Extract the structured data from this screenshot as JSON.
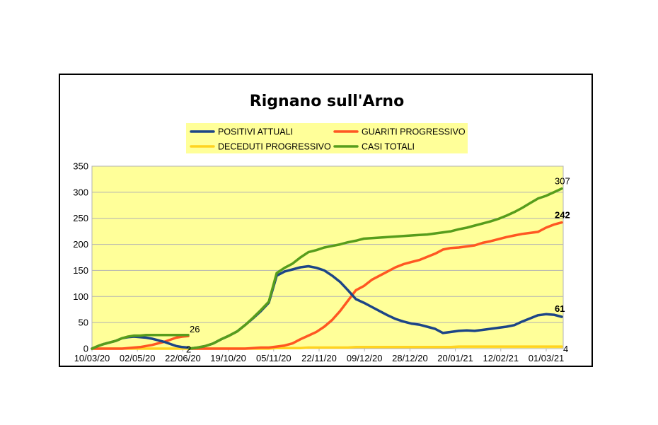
{
  "chart_data": {
    "type": "line",
    "title": "Rignano sull'Arno",
    "xlabel": "",
    "ylabel": "",
    "ylim": [
      0,
      350
    ],
    "yticks": [
      0,
      50,
      100,
      150,
      200,
      250,
      300,
      350
    ],
    "x_tick_labels": [
      "10/03/20",
      "02/05/20",
      "22/06/20",
      "19/10/20",
      "05/11/20",
      "22/11/20",
      "09/12/20",
      "28/12/20",
      "20/01/21",
      "12/02/21",
      "01/03/21"
    ],
    "grid": true,
    "legend_position": "top",
    "plot_background": "#ffff99",
    "segments": [
      {
        "segment": 1,
        "x": [
          "10/03/20",
          "17/03/20",
          "24/03/20",
          "31/03/20",
          "07/04/20",
          "14/04/20",
          "21/04/20",
          "28/04/20",
          "05/05/20",
          "12/05/20",
          "19/05/20",
          "26/05/20",
          "02/06/20",
          "09/06/20",
          "16/06/20",
          "23/06/20",
          "28/06/20"
        ],
        "series": [
          {
            "name": "POSITIVI ATTUALI",
            "color": "#1c4587",
            "values": [
              0,
              5,
              9,
              12,
              15,
              20,
              22,
              23,
              22,
              21,
              19,
              16,
              13,
              9,
              5,
              3,
              2
            ]
          },
          {
            "name": "GUARITI PROGRESSIVO",
            "color": "#ff5722",
            "values": [
              0,
              0,
              0,
              0,
              0,
              0,
              1,
              2,
              3,
              5,
              7,
              10,
              13,
              17,
              21,
              23,
              24
            ]
          },
          {
            "name": "DECEDUTI PROGRESSIVO",
            "color": "#ffd320",
            "values": [
              0,
              0,
              0,
              0,
              0,
              0,
              0,
              0,
              0,
              0,
              0,
              0,
              0,
              0,
              0,
              0,
              0
            ]
          },
          {
            "name": "CASI TOTALI",
            "color": "#579d1c",
            "values": [
              0,
              5,
              9,
              12,
              15,
              20,
              23,
              25,
              25,
              26,
              26,
              26,
              26,
              26,
              26,
              26,
              26
            ]
          }
        ]
      },
      {
        "segment": 2,
        "x": [
          "07/10/20",
          "10/10/20",
          "13/10/20",
          "16/10/20",
          "19/10/20",
          "22/10/20",
          "25/10/20",
          "28/10/20",
          "31/10/20",
          "03/11/20",
          "05/11/20",
          "08/11/20",
          "11/11/20",
          "14/11/20",
          "17/11/20",
          "20/11/20",
          "22/11/20",
          "25/11/20",
          "28/11/20",
          "01/12/20",
          "04/12/20",
          "07/12/20",
          "09/12/20",
          "12/12/20",
          "15/12/20",
          "18/12/20",
          "22/12/20",
          "25/12/20",
          "28/12/20",
          "31/12/20",
          "04/01/21",
          "08/01/21",
          "12/01/21",
          "16/01/21",
          "20/01/21",
          "24/01/21",
          "28/01/21",
          "01/02/21",
          "05/02/21",
          "08/02/21",
          "12/02/21",
          "16/02/21",
          "20/02/21",
          "24/02/21",
          "27/02/21",
          "01/03/21",
          "05/03/21",
          "09/03/21"
        ],
        "series": [
          {
            "name": "POSITIVI ATTUALI",
            "color": "#1c4587",
            "values": [
              0,
              2,
              5,
              10,
              18,
              25,
              33,
              45,
              58,
              72,
              88,
              140,
              148,
              152,
              156,
              158,
              155,
              150,
              140,
              128,
              112,
              95,
              88,
              80,
              72,
              64,
              57,
              52,
              48,
              46,
              42,
              38,
              30,
              32,
              34,
              35,
              34,
              36,
              38,
              40,
              42,
              45,
              52,
              58,
              64,
              66,
              65,
              61
            ]
          },
          {
            "name": "GUARITI PROGRESSIVO",
            "color": "#ff5722",
            "values": [
              0,
              0,
              0,
              0,
              0,
              0,
              0,
              0,
              1,
              2,
              2,
              4,
              6,
              10,
              18,
              25,
              32,
              42,
              55,
              72,
              92,
              112,
              120,
              132,
              140,
              148,
              156,
              162,
              166,
              170,
              176,
              182,
              190,
              193,
              194,
              196,
              198,
              203,
              206,
              210,
              214,
              217,
              220,
              222,
              224,
              232,
              238,
              242
            ]
          },
          {
            "name": "DECEDUTI PROGRESSIVO",
            "color": "#ffd320",
            "values": [
              0,
              0,
              0,
              0,
              0,
              0,
              0,
              0,
              0,
              0,
              0,
              1,
              1,
              1,
              1,
              2,
              2,
              2,
              2,
              2,
              2,
              3,
              3,
              3,
              3,
              3,
              3,
              3,
              3,
              3,
              3,
              3,
              3,
              3,
              4,
              4,
              4,
              4,
              4,
              4,
              4,
              4,
              4,
              4,
              4,
              4,
              4,
              4
            ]
          },
          {
            "name": "CASI TOTALI",
            "color": "#579d1c",
            "values": [
              0,
              2,
              5,
              10,
              18,
              25,
              33,
              45,
              59,
              74,
              90,
              145,
              155,
              163,
              175,
              185,
              189,
              194,
              197,
              200,
              204,
              207,
              211,
              212,
              213,
              214,
              215,
              216,
              217,
              218,
              219,
              221,
              223,
              225,
              229,
              232,
              236,
              240,
              244,
              249,
              255,
              262,
              270,
              279,
              288,
              293,
              300,
              307
            ]
          }
        ]
      }
    ],
    "data_labels": [
      {
        "series": "CASI TOTALI",
        "segment": 1,
        "text": "26",
        "value": 26,
        "bold": false
      },
      {
        "series": "POSITIVI ATTUALI",
        "segment": 1,
        "text": "2",
        "value": 2,
        "bold": false
      },
      {
        "series": "CASI TOTALI",
        "segment": 2,
        "text": "307",
        "value": 307,
        "bold": false
      },
      {
        "series": "GUARITI PROGRESSIVO",
        "segment": 2,
        "text": "242",
        "value": 242,
        "bold": true
      },
      {
        "series": "POSITIVI ATTUALI",
        "segment": 2,
        "text": "61",
        "value": 61,
        "bold": true
      },
      {
        "series": "DECEDUTI PROGRESSIVO",
        "segment": 2,
        "text": "4",
        "value": 4,
        "bold": false
      }
    ]
  },
  "legend": {
    "items": [
      {
        "label": "POSITIVI ATTUALI",
        "color": "#1c4587"
      },
      {
        "label": "GUARITI PROGRESSIVO",
        "color": "#ff5722"
      },
      {
        "label": "DECEDUTI PROGRESSIVO",
        "color": "#ffd320"
      },
      {
        "label": "CASI TOTALI",
        "color": "#579d1c"
      }
    ],
    "background": "#ffff99"
  },
  "colors": {
    "plot_background": "#ffff99",
    "gridline": "#b3b3b3",
    "frame": "#000000"
  }
}
